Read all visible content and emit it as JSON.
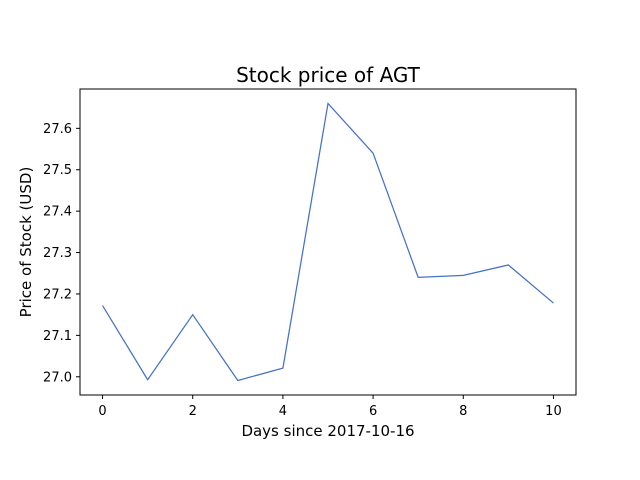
{
  "chart_data": {
    "type": "line",
    "title": "Stock price of AGT",
    "xlabel": "Days since 2017-10-16",
    "ylabel": "Price of Stock (USD)",
    "x": [
      0,
      1,
      2,
      3,
      4,
      5,
      6,
      7,
      8,
      9,
      10
    ],
    "series": [
      {
        "values": [
          27.172,
          26.993,
          27.15,
          26.991,
          27.021,
          27.66,
          27.54,
          27.24,
          27.245,
          27.27,
          27.178
        ],
        "color": "#4472c4"
      }
    ],
    "xlim": [
      -0.5,
      10.5
    ],
    "ylim": [
      26.956,
      27.695
    ],
    "xticks": [
      0,
      2,
      4,
      6,
      8,
      10
    ],
    "xtick_labels": [
      "0",
      "2",
      "4",
      "6",
      "8",
      "10"
    ],
    "yticks": [
      27.0,
      27.1,
      27.2,
      27.3,
      27.4,
      27.5,
      27.6
    ],
    "ytick_labels": [
      "27.0",
      "27.1",
      "27.2",
      "27.3",
      "27.4",
      "27.5",
      "27.6"
    ],
    "grid": false,
    "legend": "none"
  }
}
